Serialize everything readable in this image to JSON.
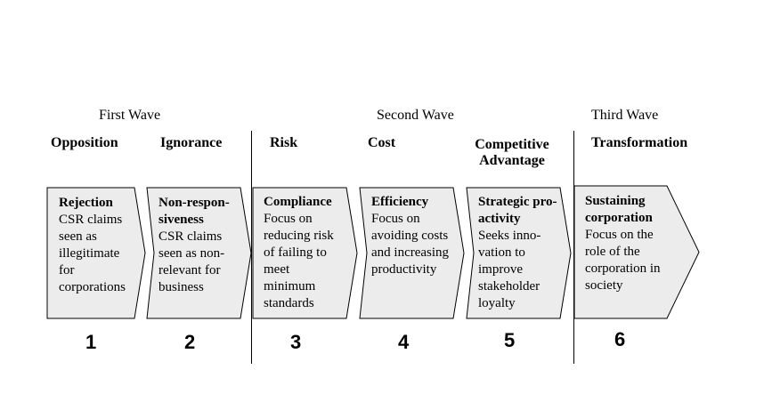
{
  "waves": [
    {
      "label": "First Wave"
    },
    {
      "label": "Second Wave"
    },
    {
      "label": "Third Wave"
    }
  ],
  "stages": [
    {
      "category": "Opposition",
      "title_lines": [
        "Rejection"
      ],
      "desc_lines": [
        "CSR claims",
        "seen as",
        "illegitimate",
        "for",
        "corporations"
      ],
      "number": "1"
    },
    {
      "category": "Ignorance",
      "title_lines": [
        "Non-respon-",
        "siveness"
      ],
      "desc_lines": [
        "CSR claims",
        "seen as non-",
        "relevant for",
        "business"
      ],
      "number": "2"
    },
    {
      "category": "Risk",
      "title_lines": [
        "Compliance"
      ],
      "desc_lines": [
        "Focus on",
        "reducing risk",
        "of failing to",
        "meet",
        "minimum",
        "standards"
      ],
      "number": "3"
    },
    {
      "category": "Cost",
      "title_lines": [
        "Efficiency"
      ],
      "desc_lines": [
        "Focus on",
        "avoiding costs",
        "and increasing",
        "productivity"
      ],
      "number": "4"
    },
    {
      "category_lines": [
        "Competitive",
        "Advantage"
      ],
      "title_lines": [
        "Strategic pro-",
        "activity"
      ],
      "desc_lines": [
        "Seeks inno-",
        "vation to",
        "improve",
        "stakeholder",
        "loyalty"
      ],
      "number": "5"
    },
    {
      "category": "Transformation",
      "title_lines": [
        "Sustaining",
        "corporation"
      ],
      "desc_lines": [
        "Focus on the",
        "role of the",
        "corporation in",
        "society"
      ],
      "number": "6"
    }
  ],
  "colors": {
    "box_fill": "#ececec",
    "box_stroke": "#000000",
    "divider": "#000000"
  }
}
